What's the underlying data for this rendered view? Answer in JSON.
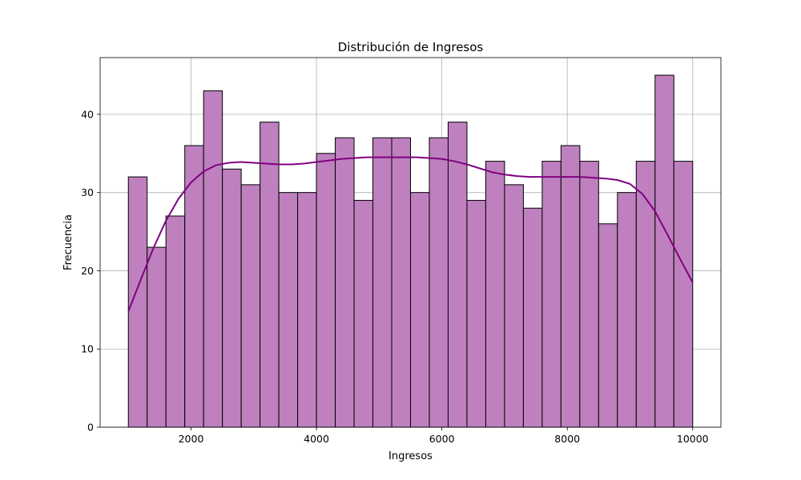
{
  "chart_data": {
    "type": "bar",
    "title": "Distribución de Ingresos",
    "xlabel": "Ingresos",
    "ylabel": "Frecuencia",
    "xlim": [
      550,
      10450
    ],
    "ylim": [
      0,
      47.25
    ],
    "xticks": [
      2000,
      4000,
      6000,
      8000,
      10000
    ],
    "yticks": [
      0,
      10,
      20,
      30,
      40
    ],
    "grid": true,
    "bin_edges": [
      1000,
      1300,
      1600,
      1900,
      2200,
      2500,
      2800,
      3100,
      3400,
      3700,
      4000,
      4300,
      4600,
      4900,
      5200,
      5500,
      5800,
      6100,
      6400,
      6700,
      7000,
      7300,
      7600,
      7900,
      8200,
      8500,
      8800,
      9100,
      9400,
      9700,
      10000
    ],
    "counts": [
      32,
      23,
      27,
      36,
      43,
      33,
      31,
      39,
      30,
      30,
      35,
      37,
      29,
      37,
      37,
      30,
      37,
      39,
      29,
      34,
      31,
      28,
      34,
      36,
      34,
      26,
      30,
      34,
      45,
      34
    ],
    "kde": {
      "x": [
        1000,
        1200,
        1400,
        1600,
        1800,
        2000,
        2200,
        2400,
        2600,
        2800,
        3000,
        3200,
        3400,
        3600,
        3800,
        4000,
        4200,
        4400,
        4600,
        4800,
        5000,
        5200,
        5400,
        5600,
        5800,
        6000,
        6200,
        6400,
        6600,
        6800,
        7000,
        7200,
        7400,
        7600,
        7800,
        8000,
        8200,
        8400,
        8600,
        8800,
        9000,
        9200,
        9400,
        9600,
        9800,
        10000
      ],
      "y": [
        14.8,
        18.9,
        22.9,
        26.4,
        29.2,
        31.3,
        32.7,
        33.5,
        33.8,
        33.9,
        33.8,
        33.7,
        33.6,
        33.6,
        33.7,
        33.9,
        34.1,
        34.3,
        34.4,
        34.5,
        34.5,
        34.5,
        34.5,
        34.5,
        34.4,
        34.3,
        34.0,
        33.6,
        33.1,
        32.6,
        32.3,
        32.1,
        32.0,
        32.0,
        32.0,
        32.0,
        32.0,
        31.9,
        31.8,
        31.6,
        31.1,
        29.8,
        27.6,
        24.6,
        21.5,
        18.5
      ]
    },
    "colors": {
      "bar_fill": "#bf80bf",
      "bar_edge": "#000000",
      "kde_line": "#800080",
      "grid": "#b0b0b0"
    }
  }
}
